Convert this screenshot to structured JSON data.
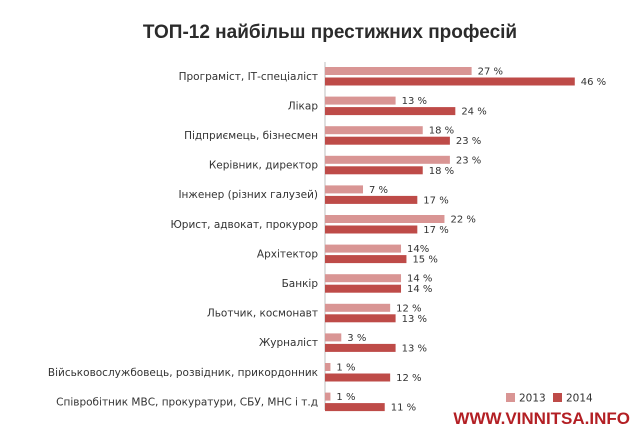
{
  "chart_data": {
    "type": "bar",
    "orientation": "horizontal",
    "title": "ТОП-12 найбільш престижних професій",
    "categories": [
      "Програміст, ІТ-спеціаліст",
      "Лікар",
      "Підприємець, бізнесмен",
      "Керівник, директор",
      "Інженер (різних галузей)",
      "Юрист, адвокат, прокурор",
      "Архітектор",
      "Банкір",
      "Льотчик, космонавт",
      "Журналіст",
      "Військовослужбовець, розвідник, прикордонник",
      "Співробітник МВС, прокуратури, СБУ, МНС і т.д"
    ],
    "series": [
      {
        "name": "2013",
        "color": "#d99594",
        "values": [
          27,
          13,
          18,
          23,
          7,
          22,
          14,
          14,
          12,
          3,
          1,
          1
        ],
        "labels": [
          "27 %",
          "13 %",
          "18 %",
          "23 %",
          "7 %",
          "22 %",
          "14%",
          "14 %",
          "12 %",
          "3 %",
          "1 %",
          "1 %"
        ]
      },
      {
        "name": "2014",
        "color": "#be4b48",
        "values": [
          46,
          24,
          23,
          18,
          17,
          17,
          15,
          14,
          13,
          13,
          12,
          11
        ],
        "labels": [
          "46 %",
          "24 %",
          "23 %",
          "18 %",
          "17 %",
          "17 %",
          "15 %",
          "14 %",
          "13 %",
          "13 %",
          "12 %",
          "11 %"
        ]
      }
    ],
    "xlim": [
      0,
      46
    ],
    "grid": false,
    "legend_position": "bottom-right"
  },
  "watermark": "WWW.VINNITSA.INFO"
}
